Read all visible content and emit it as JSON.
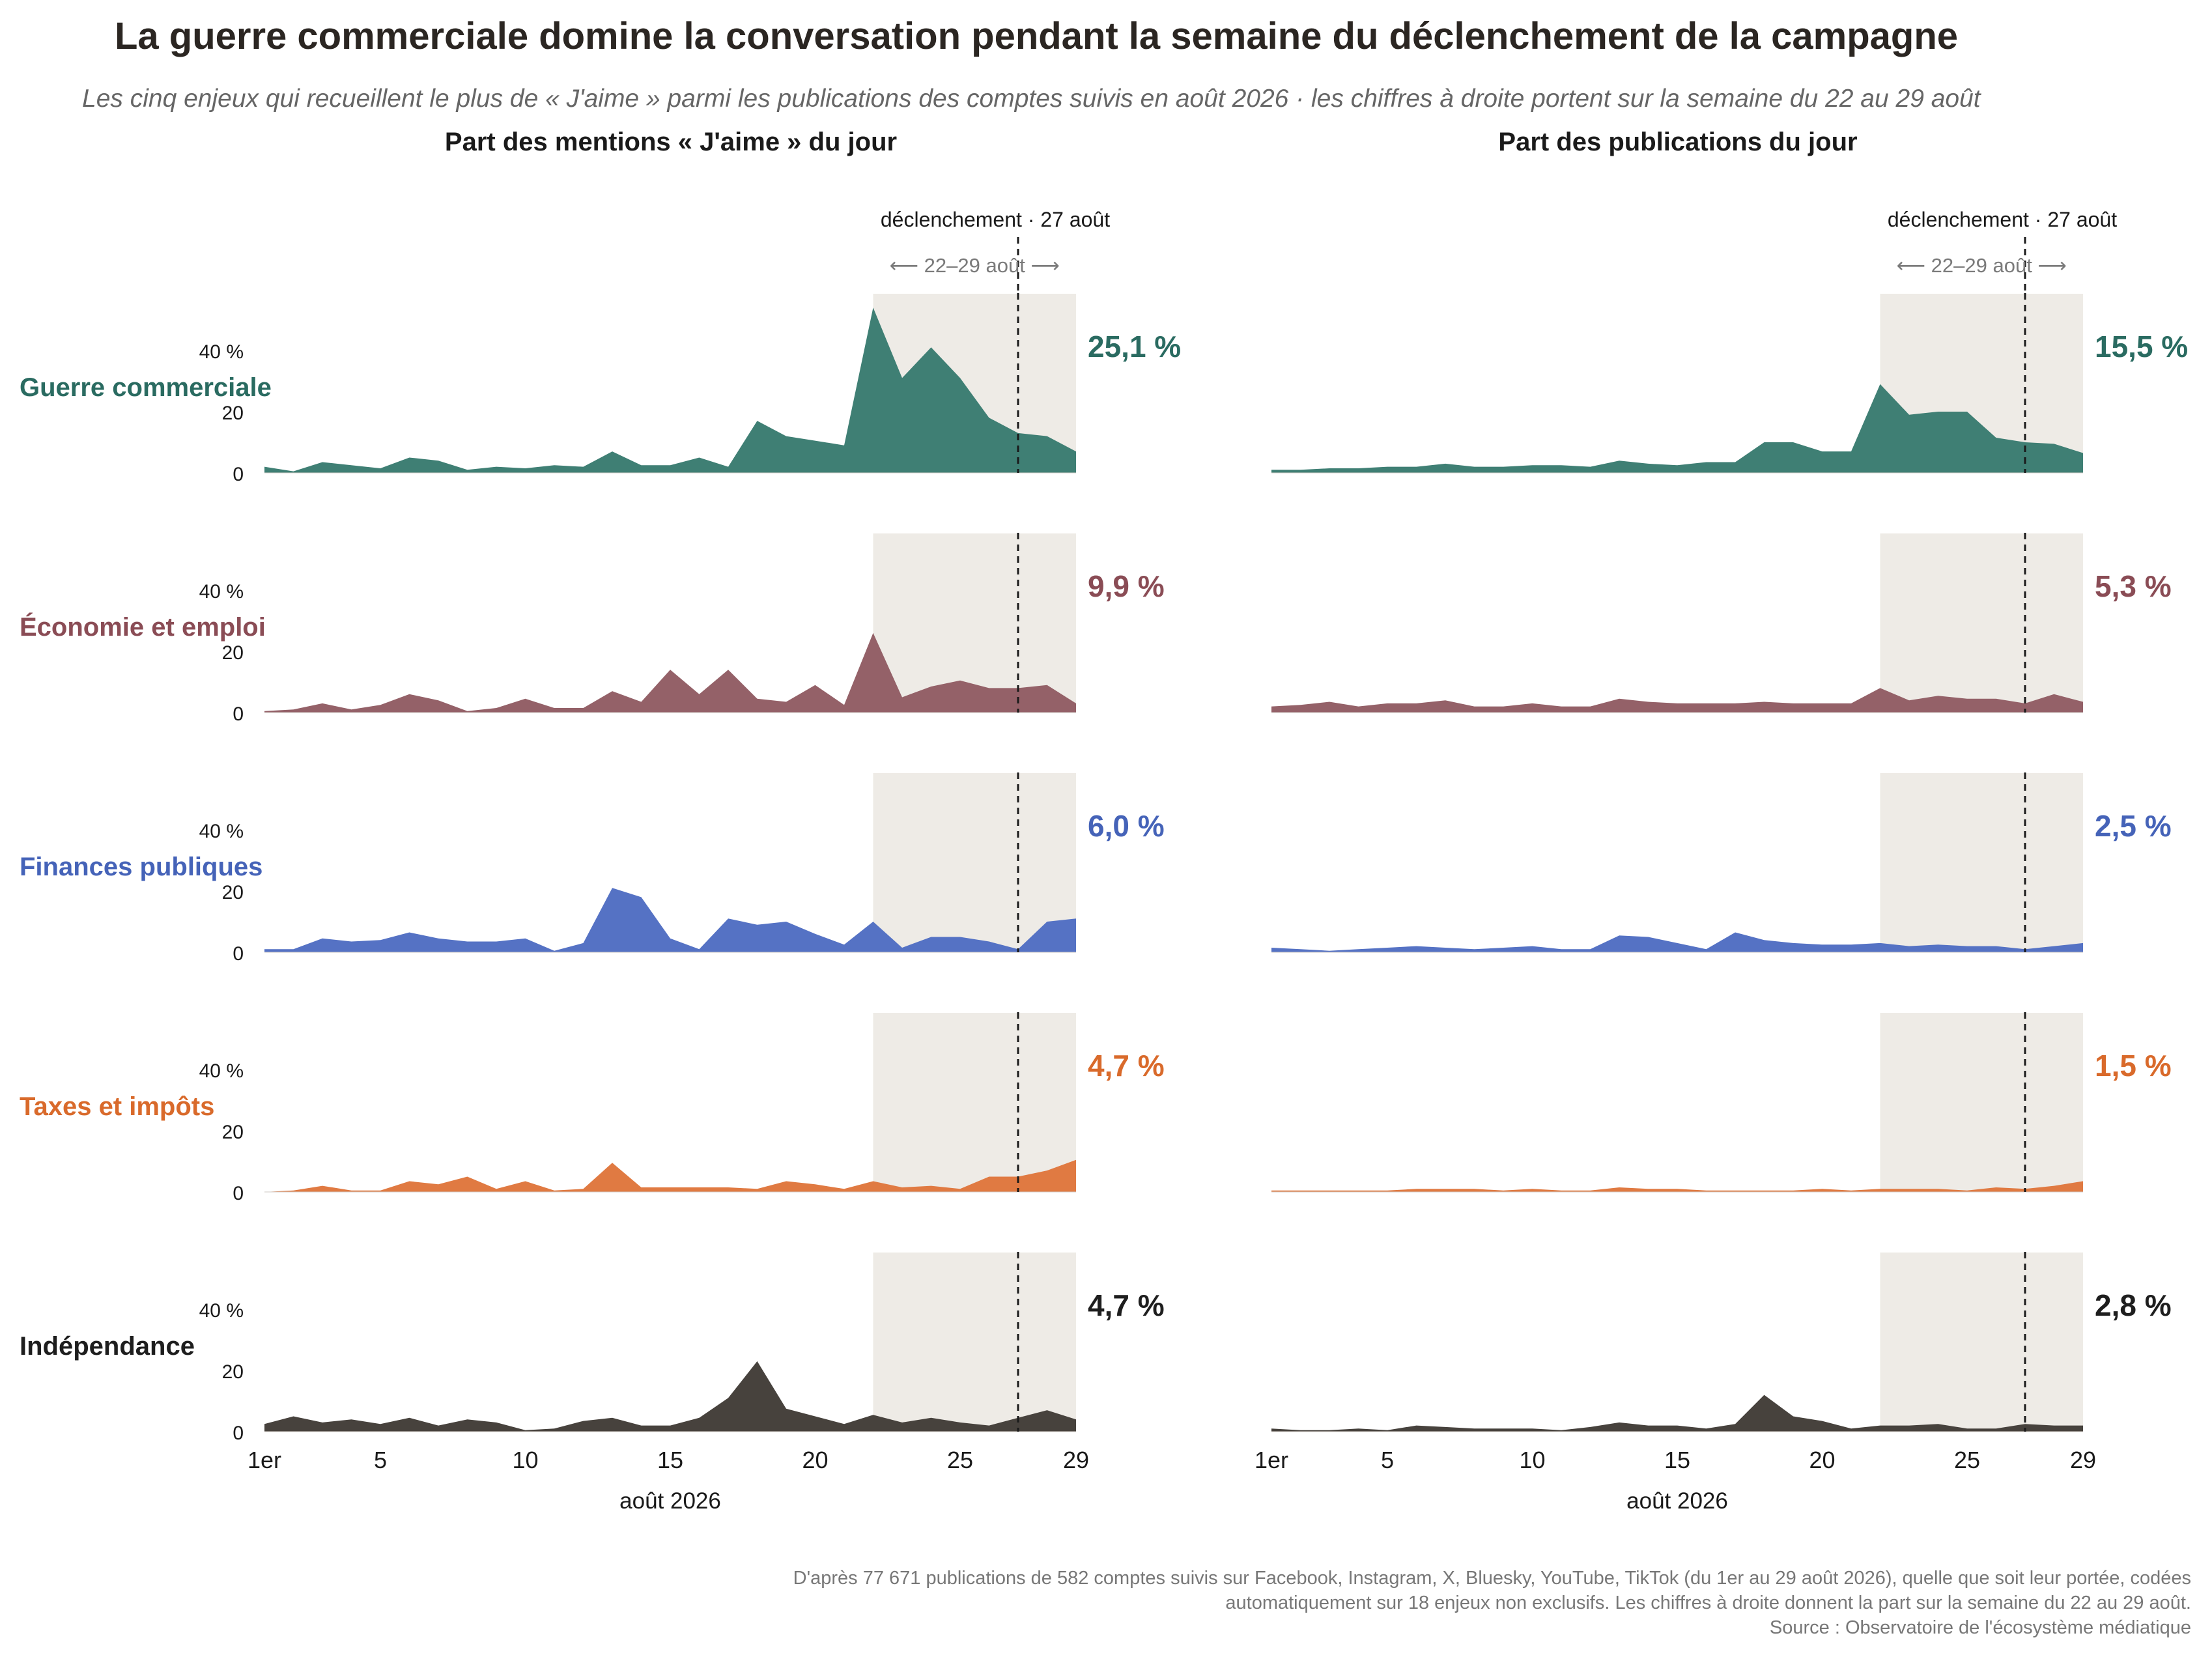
{
  "title": "La guerre commerciale domine la conversation pendant la semaine du déclenchement de la campagne",
  "subtitle": "Les cinq enjeux qui recueillent le plus de « J'aime » parmi les publications des comptes suivis en août 2026 · les chiffres à droite portent sur la semaine du 22 au 29 août",
  "columns": [
    {
      "title": "Part des mentions « J'aime » du jour"
    },
    {
      "title": "Part des publications du jour"
    }
  ],
  "annotations": {
    "event_label": "déclenchement · 27 août",
    "window_label": "⟵ 22–29 août ⟶"
  },
  "caption": {
    "line1": "D'après 77 671 publications de 582 comptes suivis sur Facebook, Instagram, X, Bluesky, YouTube, TikTok (du 1er au 29 août 2026), quelle que soit leur portée, codées",
    "line2": "automatiquement sur 18 enjeux non exclusifs. Les chiffres à droite donnent la part sur la semaine du 22 au 29 août.",
    "line3": "Source : Observatoire de l'écosystème médiatique"
  },
  "chart_data": {
    "type": "area",
    "x": [
      1,
      2,
      3,
      4,
      5,
      6,
      7,
      8,
      9,
      10,
      11,
      12,
      13,
      14,
      15,
      16,
      17,
      18,
      19,
      20,
      21,
      22,
      23,
      24,
      25,
      26,
      27,
      28,
      29
    ],
    "xticks": [
      1,
      5,
      10,
      15,
      20,
      25,
      29
    ],
    "xtick_labels": [
      "1er",
      "5",
      "10",
      "15",
      "20",
      "25",
      "29"
    ],
    "xlabel": "août 2026",
    "ylim": [
      0,
      50
    ],
    "yticks": [
      0,
      20,
      40
    ],
    "ytick_labels": [
      "0",
      "20",
      "40 %"
    ],
    "highlight_window": [
      22,
      29
    ],
    "event_day": 27,
    "series": [
      {
        "name": "Guerre commerciale",
        "color": "#3f7f74",
        "label_color": "#2a6b61",
        "likes": [
          2,
          0.5,
          3.5,
          2.5,
          1.5,
          5,
          4,
          1,
          2,
          1.5,
          2.5,
          2,
          7,
          2.5,
          2.5,
          5,
          2,
          17,
          12,
          10.5,
          9,
          54,
          31,
          41,
          31,
          18,
          13,
          12,
          7
        ],
        "posts": [
          1,
          1,
          1.5,
          1.5,
          2,
          2,
          3,
          2,
          2,
          2.5,
          2.5,
          2,
          4,
          3,
          2.5,
          3.5,
          3.5,
          10,
          10,
          7,
          7,
          29,
          19,
          20,
          20,
          11.5,
          10,
          9.5,
          6.5
        ],
        "likes_value": "25,1 %",
        "posts_value": "15,5 %"
      },
      {
        "name": "Économie et emploi",
        "color": "#946168",
        "label_color": "#8a4c55",
        "likes": [
          0.5,
          1,
          3,
          1,
          2.5,
          6,
          4,
          0.5,
          1.5,
          4.5,
          1.5,
          1.5,
          7,
          3.5,
          14,
          6,
          14,
          4.5,
          3.5,
          9,
          2.5,
          26,
          5,
          8.5,
          10.5,
          8,
          8,
          9,
          3
        ],
        "posts": [
          2,
          2.5,
          3.5,
          2,
          3,
          3,
          4,
          2,
          2,
          3,
          2,
          2,
          4.5,
          3.5,
          3,
          3,
          3,
          3.5,
          3,
          3,
          3,
          8,
          4,
          5.5,
          4.5,
          4.5,
          3,
          6,
          3.5
        ],
        "likes_value": "9,9 %",
        "posts_value": "5,3 %"
      },
      {
        "name": "Finances publiques",
        "color": "#5572c4",
        "label_color": "#4563b8",
        "likes": [
          1,
          1,
          4.5,
          3.5,
          4,
          6.5,
          4.5,
          3.5,
          3.5,
          4.5,
          0.5,
          3,
          21,
          18,
          4.5,
          1,
          11,
          9,
          10,
          6,
          2.5,
          10,
          1.5,
          5,
          5,
          3.5,
          1,
          10,
          11
        ],
        "posts": [
          1.5,
          1,
          0.5,
          1,
          1.5,
          2,
          1.5,
          1,
          1.5,
          2,
          1,
          1,
          5.5,
          5,
          3,
          1,
          6.5,
          4,
          3,
          2.5,
          2.5,
          3,
          2,
          2.5,
          2,
          2,
          1,
          2,
          3
        ],
        "likes_value": "6,0 %",
        "posts_value": "2,5 %"
      },
      {
        "name": "Taxes et impôts",
        "color": "#e07a42",
        "label_color": "#d96a2b",
        "likes": [
          0,
          0.5,
          2,
          0.5,
          0.5,
          3.5,
          2.5,
          5,
          1,
          3.5,
          0.5,
          1,
          9.5,
          1.5,
          1.5,
          1.5,
          1.5,
          1,
          3.5,
          2.5,
          1,
          3.5,
          1.5,
          2,
          1,
          5,
          5,
          7,
          10.5
        ],
        "posts": [
          0.5,
          0.5,
          0.5,
          0.5,
          0.5,
          1,
          1,
          1,
          0.5,
          1,
          0.5,
          0.5,
          1.5,
          1,
          1,
          0.5,
          0.5,
          0.5,
          0.5,
          1,
          0.5,
          1,
          1,
          1,
          0.5,
          1.5,
          1,
          2,
          3.5
        ],
        "likes_value": "4,7 %",
        "posts_value": "1,5 %"
      },
      {
        "name": "Indépendance",
        "color": "#47423d",
        "label_color": "#1e1e1e",
        "likes": [
          2.5,
          5,
          3,
          4,
          2.5,
          4.5,
          2,
          4,
          3,
          0.5,
          1,
          3.5,
          4.5,
          2,
          2,
          4.5,
          11,
          23,
          7.5,
          5,
          2.5,
          5.5,
          3,
          4.5,
          3,
          2,
          4.5,
          7,
          4
        ],
        "posts": [
          1,
          0.5,
          0.5,
          1,
          0.5,
          2,
          1.5,
          1,
          1,
          1,
          0.5,
          1.5,
          3,
          2,
          2,
          1,
          2.5,
          12,
          5,
          3.5,
          1,
          2,
          2,
          2.5,
          1,
          1,
          2.5,
          2,
          2
        ],
        "likes_value": "4,7 %",
        "posts_value": "2,8 %"
      }
    ]
  }
}
